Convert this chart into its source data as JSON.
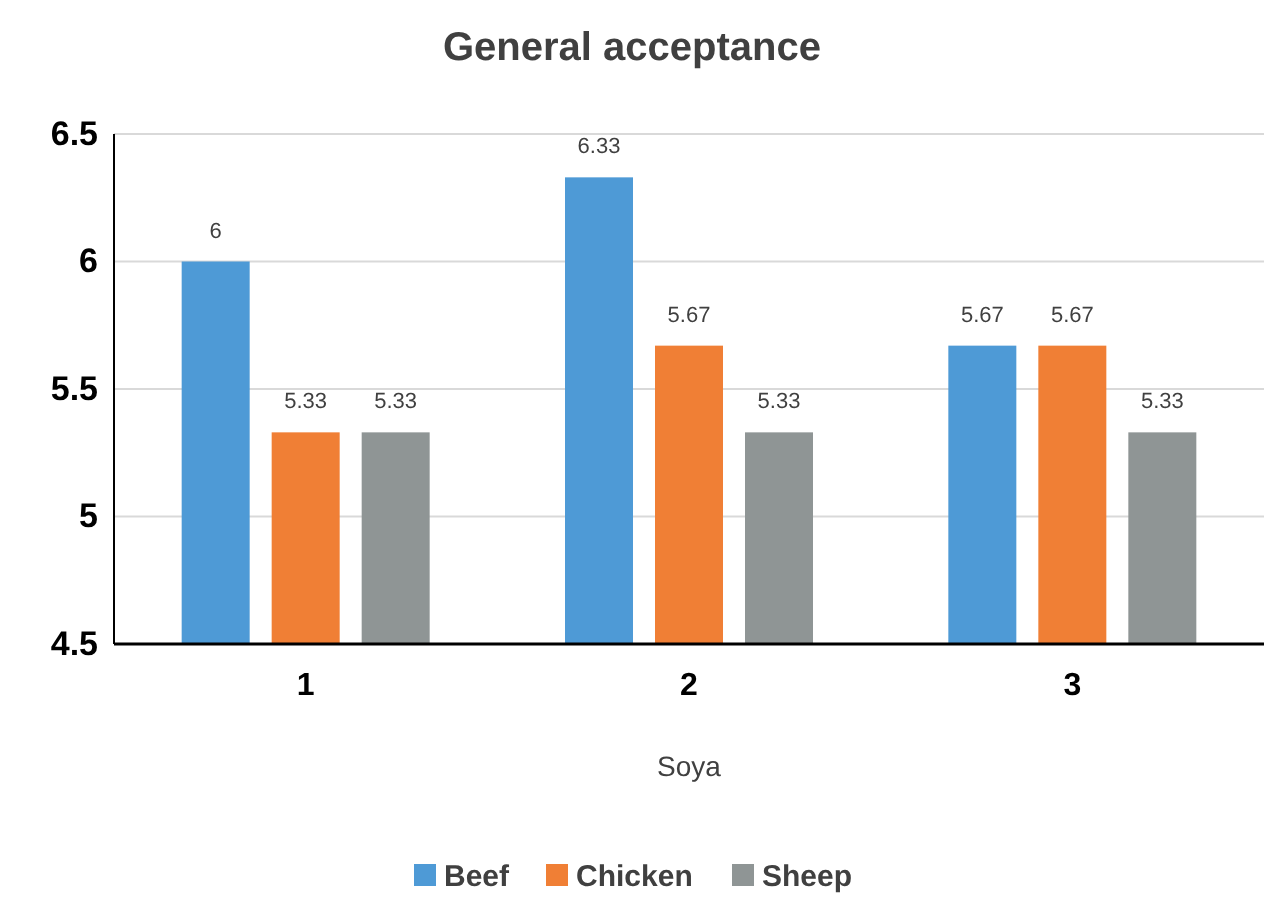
{
  "chart_data": {
    "type": "bar",
    "title": "General acceptance",
    "xlabel": "Soya",
    "categories": [
      "1",
      "2",
      "3"
    ],
    "series": [
      {
        "name": "Beef",
        "color": "#4e9ad6",
        "values": [
          6,
          6.33,
          5.67
        ]
      },
      {
        "name": "Chicken",
        "color": "#f07f35",
        "values": [
          5.33,
          5.67,
          5.67
        ]
      },
      {
        "name": "Sheep",
        "color": "#8f9595",
        "values": [
          5.33,
          5.33,
          5.33
        ]
      }
    ],
    "ylim": [
      4.5,
      6.5
    ],
    "yticks": [
      4.5,
      5,
      5.5,
      6,
      6.5
    ],
    "grid": "y",
    "legend": "bottom",
    "data_labels": true
  }
}
